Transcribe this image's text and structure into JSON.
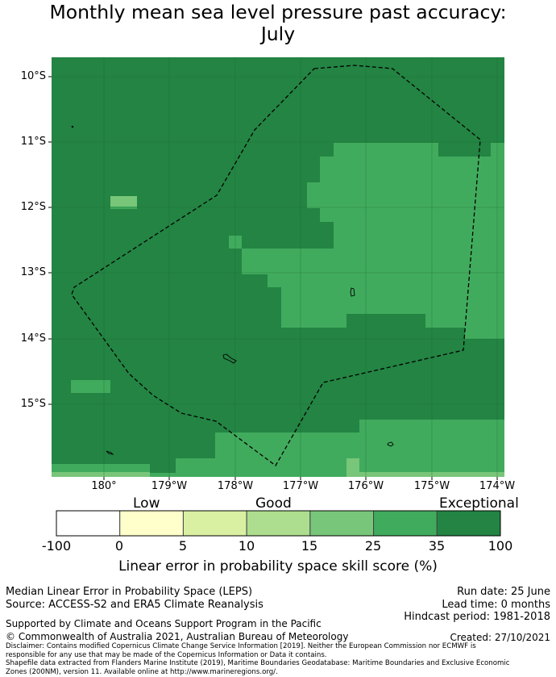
{
  "title_line1": "Monthly mean sea level pressure past accuracy:",
  "title_line2": "July",
  "map": {
    "lat_labels": [
      "10°S",
      "11°S",
      "12°S",
      "13°S",
      "14°S",
      "15°S"
    ],
    "lon_labels": [
      "180°",
      "179°W",
      "178°W",
      "177°W",
      "176°W",
      "175°W",
      "174°W"
    ],
    "colors": {
      "exceptional": "#238443",
      "very_good": "#41ab5d",
      "good_high": "#78c679",
      "boundary": "#000000"
    }
  },
  "colorbar": {
    "category_labels": [
      "Low",
      "Good",
      "Exceptional"
    ],
    "ticks": [
      "-100",
      "0",
      "5",
      "10",
      "15",
      "25",
      "35",
      "100"
    ],
    "colors": [
      "#ffffff",
      "#ffffcc",
      "#d9f0a3",
      "#addd8e",
      "#78c679",
      "#41ab5d",
      "#238443"
    ],
    "label": "Linear error in probability space skill score (%)"
  },
  "info": {
    "method": "Median Linear Error in Probability Space (LEPS)",
    "source": "Source: ACCESS-S2 and ERA5 Climate Reanalysis",
    "run_date": "Run date: 25 June",
    "lead_time": "Lead time: 0 months",
    "hindcast": "Hindcast period: 1981-2018",
    "supported": "Supported by Climate and Oceans Support Program in the Pacific",
    "copyright": "© Commonwealth of Australia 2021, Australian Bureau of Meteorology",
    "created": "Created: 27/10/2021",
    "disclaimer1": "Disclaimer: Contains modified Copernicus Climate Change Service Information [2019]. Neither the European Commission nor ECMWF is",
    "disclaimer2": "responsible for any use that may be made of the Copernicus Information or Data it contains.",
    "disclaimer3": "Shapefile data extracted from Flanders Marine Institute (2019), Maritime Boundaries Geodatabase: Maritime Boundaries and Exclusive Economic",
    "disclaimer4": "Zones (200NM), version 11. Available online at http://www.marineregions.org/."
  }
}
